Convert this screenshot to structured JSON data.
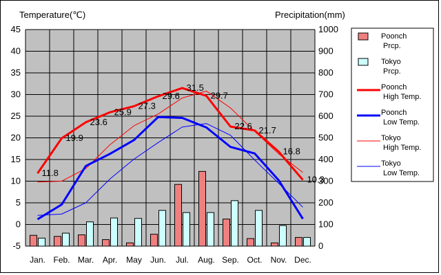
{
  "chart_data": {
    "type": "bar+line",
    "left_axis_title": "Temperature(℃)",
    "right_axis_title": "Precipitation(mm)",
    "left_ylim": [
      -5,
      45
    ],
    "left_ticks": [
      45,
      40,
      35,
      30,
      25,
      20,
      15,
      10,
      5,
      0,
      -5
    ],
    "right_ylim": [
      0,
      1000
    ],
    "right_ticks": [
      1000,
      900,
      800,
      700,
      600,
      500,
      400,
      300,
      200,
      100,
      0
    ],
    "categories": [
      "Jan.",
      "Feb.",
      "Mar.",
      "Apr.",
      "May",
      "Jun.",
      "Jul.",
      "Aug.",
      "Sep.",
      "Oct.",
      "Nov.",
      "Dec."
    ],
    "grid": true,
    "background": "#c0c0c0",
    "legend_position": "right",
    "series": [
      {
        "key": "poonch_prcp",
        "name": "Poonch\nPrcp.",
        "kind": "bar",
        "axis": "right",
        "color": "#f08080",
        "values": [
          50,
          45,
          52,
          30,
          15,
          55,
          285,
          345,
          125,
          35,
          15,
          40
        ]
      },
      {
        "key": "tokyo_prcp",
        "name": "Tokyo\nPrcp.",
        "kind": "bar",
        "axis": "right",
        "color": "#ccffff",
        "values": [
          37,
          60,
          112,
          130,
          128,
          165,
          155,
          155,
          210,
          165,
          95,
          40
        ]
      },
      {
        "key": "poonch_high",
        "name": "Poonch\nHigh Temp.",
        "kind": "line",
        "axis": "left",
        "color": "#ff0000",
        "width": 3,
        "values": [
          11.8,
          19.9,
          23.6,
          25.9,
          27.3,
          29.6,
          31.5,
          29.7,
          22.6,
          21.7,
          16.8,
          10.3
        ],
        "labels": [
          "11.8",
          "19.9",
          "23.6",
          "25.9",
          "27.3",
          "29.6",
          "31.5",
          "29.7",
          "22.6",
          "21.7",
          "16.8",
          "10.3"
        ]
      },
      {
        "key": "poonch_low",
        "name": "Poonch\nLow Temp.",
        "kind": "line",
        "axis": "left",
        "color": "#0000ff",
        "width": 3,
        "values": [
          1.2,
          4.6,
          13.5,
          16.3,
          19.5,
          24.8,
          24.6,
          22.4,
          17.9,
          16.4,
          10.2,
          1.3
        ]
      },
      {
        "key": "tokyo_high",
        "name": "Tokyo\nHigh Temp.",
        "kind": "line",
        "axis": "left",
        "color": "#ff0000",
        "width": 1,
        "values": [
          9.8,
          10.0,
          12.9,
          18.4,
          22.8,
          25.5,
          29.2,
          30.8,
          26.9,
          21.5,
          16.3,
          12.0
        ]
      },
      {
        "key": "tokyo_low",
        "name": "Tokyo\nLow Temp.",
        "kind": "line",
        "axis": "left",
        "color": "#0000ff",
        "width": 1,
        "values": [
          2.1,
          2.4,
          5.0,
          10.5,
          15.1,
          18.9,
          22.5,
          23.3,
          20.6,
          14.9,
          9.5,
          4.0
        ]
      }
    ]
  }
}
